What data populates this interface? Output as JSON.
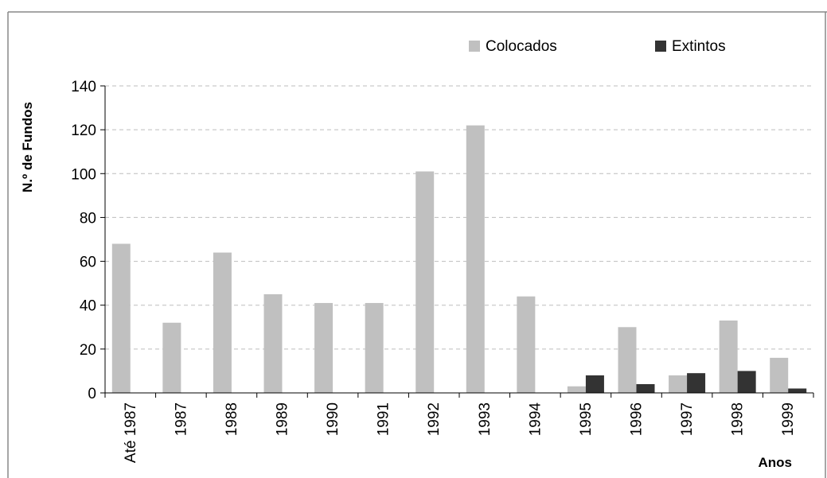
{
  "chart_data": {
    "type": "bar",
    "title": "",
    "xlabel": "Anos",
    "ylabel": "N.º de Fundos",
    "ylim": [
      0,
      140
    ],
    "yticks": [
      0,
      20,
      40,
      60,
      80,
      100,
      120,
      140
    ],
    "grid": true,
    "legend_position": "top-right",
    "categories": [
      "Até 1987",
      "1987",
      "1988",
      "1989",
      "1990",
      "1991",
      "1992",
      "1993",
      "1994",
      "1995",
      "1996",
      "1997",
      "1998",
      "1999"
    ],
    "series": [
      {
        "name": "Colocados",
        "color": "#c0c0c0",
        "values": [
          68,
          32,
          64,
          45,
          41,
          41,
          101,
          122,
          44,
          3,
          30,
          8,
          33,
          16
        ]
      },
      {
        "name": "Extintos",
        "color": "#333333",
        "values": [
          0,
          0,
          0,
          0,
          0,
          0,
          0,
          0,
          0,
          8,
          4,
          9,
          10,
          2
        ]
      }
    ]
  }
}
